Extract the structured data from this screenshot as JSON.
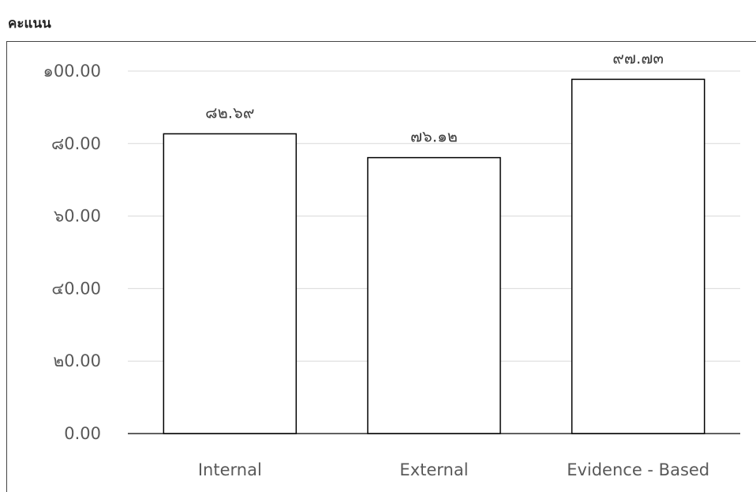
{
  "heading": "คะแนน",
  "chart_data": {
    "type": "bar",
    "categories": [
      "Internal",
      "External",
      "Evidence - Based"
    ],
    "values": [
      82.69,
      76.12,
      97.73
    ],
    "data_labels": [
      "๘๒.๖๙",
      "๗๖.๑๒",
      "๙๗.๗๓"
    ],
    "ylim": [
      0,
      100
    ],
    "yticks": [
      0,
      20,
      40,
      60,
      80,
      100
    ],
    "ytick_labels": [
      "0.00",
      "๒0.00",
      "๔0.00",
      "๖0.00",
      "๘0.00",
      "๑00.00"
    ],
    "grid": true,
    "legend": "none",
    "colors": {
      "bar_fill": "#ffffff",
      "bar_stroke": "#000000",
      "gridline": "#d9d9d9",
      "axis": "#000000"
    }
  }
}
